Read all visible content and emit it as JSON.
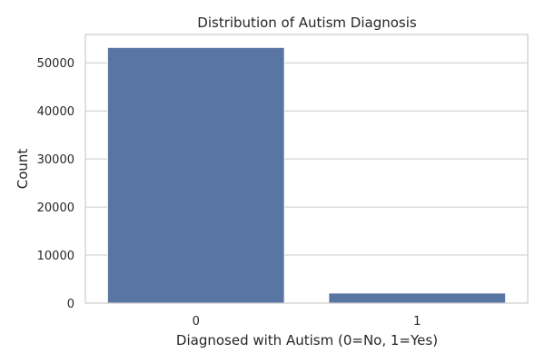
{
  "chart_data": {
    "type": "bar",
    "title": "Distribution of Autism Diagnosis",
    "xlabel": "Diagnosed with Autism (0=No, 1=Yes)",
    "ylabel": "Count",
    "categories": [
      "0",
      "1"
    ],
    "values": [
      53200,
      2100
    ],
    "ylim": [
      0,
      55900
    ],
    "yticks": [
      0,
      10000,
      20000,
      30000,
      40000,
      50000
    ],
    "grid": true,
    "bar_color": "#5975a4",
    "grid_color": "#cccccc"
  }
}
